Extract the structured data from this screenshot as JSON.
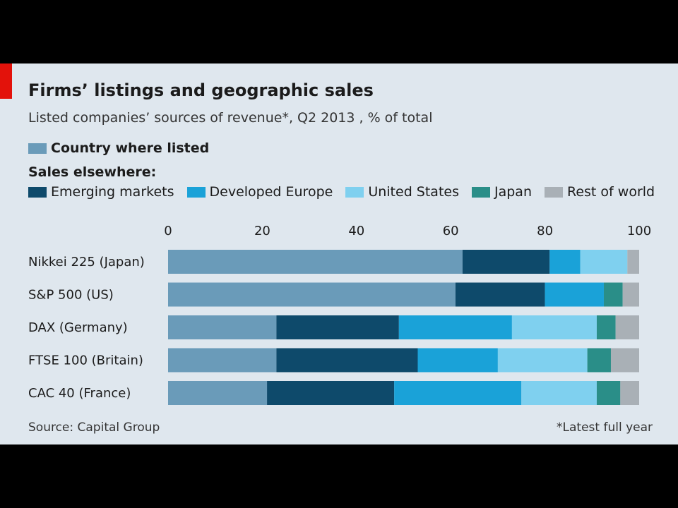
{
  "title": "Firms’ listings and geographic sales",
  "subtitle": "Listed companies’ sources of revenue*, Q2 2013 , % of total",
  "legend": {
    "primary": "Country where listed",
    "heading": "Sales elsewhere:",
    "items": [
      "Emerging markets",
      "Developed Europe",
      "United States",
      "Japan",
      "Rest of world"
    ]
  },
  "source": "Source: Capital Group",
  "footnote": "*Latest full year",
  "colors": {
    "background": "#dfe7ee",
    "country_where_listed": "#6a9bb9",
    "emerging_markets": "#0e4a6b",
    "developed_europe": "#1aa2d8",
    "united_states": "#7fd0ef",
    "japan": "#2a8e88",
    "rest_of_world": "#a9b0b6"
  },
  "chart_data": {
    "type": "bar",
    "orientation": "horizontal",
    "stacked": true,
    "categories": [
      "Nikkei 225 (Japan)",
      "S&P 500 (US)",
      "DAX (Germany)",
      "FTSE 100 (Britain)",
      "CAC 40 (France)"
    ],
    "series": [
      {
        "name": "Country where listed",
        "values": [
          62.5,
          61,
          23,
          23,
          21
        ]
      },
      {
        "name": "Emerging markets",
        "values": [
          18.5,
          19,
          26,
          30,
          27
        ]
      },
      {
        "name": "Developed Europe",
        "values": [
          6.5,
          12.5,
          24,
          17,
          27
        ]
      },
      {
        "name": "United States",
        "values": [
          10,
          0,
          18,
          19,
          16
        ]
      },
      {
        "name": "Japan",
        "values": [
          0,
          4,
          4,
          5,
          5
        ]
      },
      {
        "name": "Rest of world",
        "values": [
          2.5,
          3.5,
          5,
          6,
          4
        ]
      }
    ],
    "xlim": [
      0,
      100
    ],
    "xticks": [
      0,
      20,
      40,
      60,
      80,
      100
    ],
    "legend_position": "top"
  }
}
